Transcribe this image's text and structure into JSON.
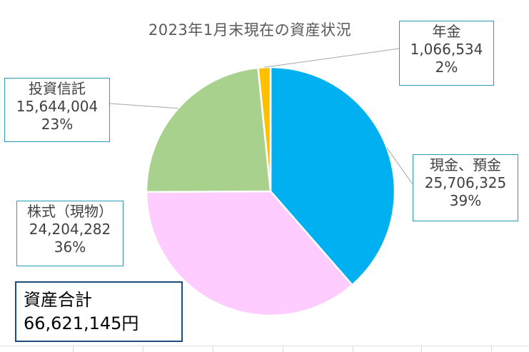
{
  "chart_data": {
    "type": "pie",
    "title": "2023年1月末現在の資産状況",
    "slices": [
      {
        "name": "現金、預金",
        "value": 25706325,
        "value_label": "25,706,325",
        "percent_label": "39%",
        "color": "#00b0f0"
      },
      {
        "name": "株式（現物）",
        "value": 24204282,
        "value_label": "24,204,282",
        "percent_label": "36%",
        "color": "#ffccff"
      },
      {
        "name": "投資信託",
        "value": 15644004,
        "value_label": "15,644,004",
        "percent_label": "23%",
        "color": "#a9d18e"
      },
      {
        "name": "年金",
        "value": 1066534,
        "value_label": "1,066,534",
        "percent_label": "2%",
        "color": "#ffc000"
      }
    ],
    "legend": "none"
  },
  "total": {
    "label": "資産合計",
    "value": "66,621,145円"
  }
}
